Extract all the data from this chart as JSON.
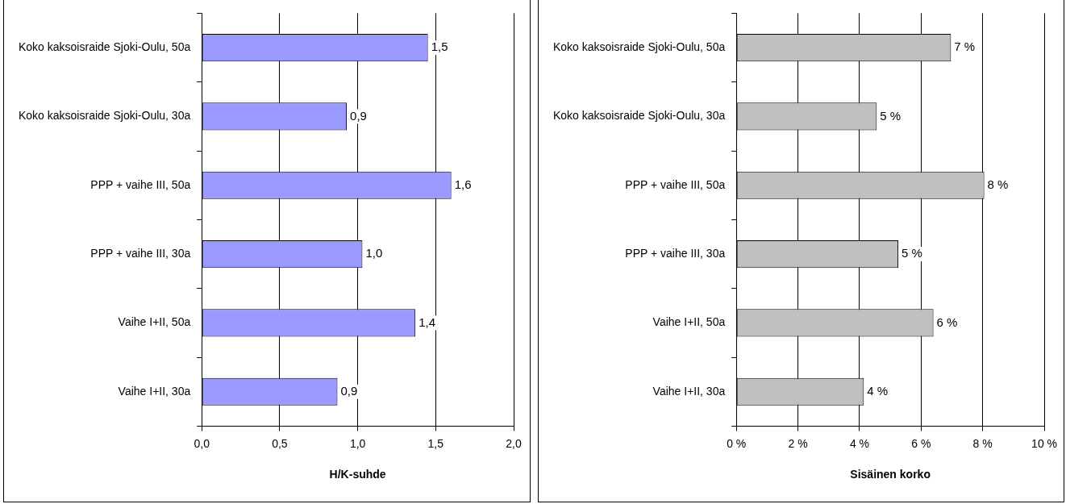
{
  "chart_data": [
    {
      "type": "bar",
      "orientation": "horizontal",
      "xlabel": "H/K-suhde",
      "categories": [
        "Koko kaksoisraide Sjoki-Oulu, 50a",
        "Koko kaksoisraide Sjoki-Oulu, 30a",
        "PPP + vaihe III, 50a",
        "PPP + vaihe III, 30a",
        "Vaihe I+II, 50a",
        "Vaihe I+II, 30a"
      ],
      "values": [
        1.45,
        0.93,
        1.6,
        1.03,
        1.37,
        0.87
      ],
      "value_labels": [
        "1,5",
        "0,9",
        "1,6",
        "1,0",
        "1,4",
        "0,9"
      ],
      "color": "#9999ff",
      "xlim": [
        0,
        2
      ],
      "xticks": [
        {
          "value": 0,
          "label": "0,0"
        },
        {
          "value": 0.5,
          "label": "0,5"
        },
        {
          "value": 1,
          "label": "1,0"
        },
        {
          "value": 1.5,
          "label": "1,5"
        },
        {
          "value": 2,
          "label": "2,0"
        }
      ],
      "grid": "x",
      "legend": false
    },
    {
      "type": "bar",
      "orientation": "horizontal",
      "xlabel": "Sisäinen korko",
      "categories": [
        "Koko kaksoisraide Sjoki-Oulu, 50a",
        "Koko kaksoisraide Sjoki-Oulu, 30a",
        "PPP + vaihe III, 50a",
        "PPP + vaihe III, 30a",
        "Vaihe I+II, 50a",
        "Vaihe I+II, 30a"
      ],
      "values": [
        6.97,
        4.56,
        8.05,
        5.26,
        6.4,
        4.14
      ],
      "value_labels": [
        "7 %",
        "5 %",
        "8 %",
        "5 %",
        "6 %",
        "4 %"
      ],
      "color": "#c0c0c0",
      "xlim": [
        0,
        10
      ],
      "xticks": [
        {
          "value": 0,
          "label": "0 %"
        },
        {
          "value": 2,
          "label": "2 %"
        },
        {
          "value": 4,
          "label": "4 %"
        },
        {
          "value": 6,
          "label": "6 %"
        },
        {
          "value": 8,
          "label": "8 %"
        },
        {
          "value": 10,
          "label": "10 %"
        }
      ],
      "grid": "x",
      "legend": false
    }
  ]
}
